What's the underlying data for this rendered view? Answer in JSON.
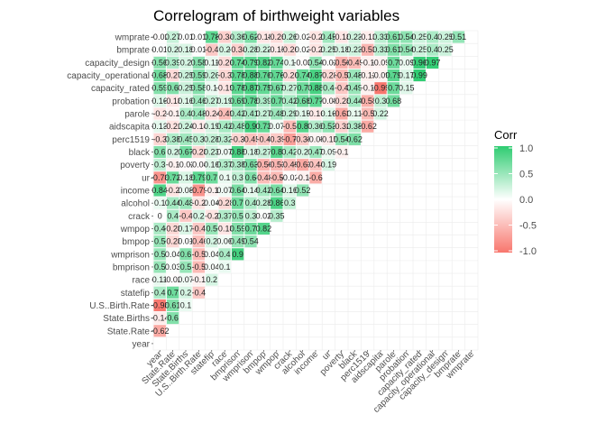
{
  "chart_data": {
    "type": "heatmap",
    "title": "Correlogram of birthweight variables",
    "variables": [
      "year",
      "State.Rate",
      "State.Births",
      "U.S..Birth.Rate",
      "statefip",
      "race",
      "bmprison",
      "wmprison",
      "bmpop",
      "wmpop",
      "crack",
      "alcohol",
      "income",
      "ur",
      "poverty",
      "black",
      "perc1519",
      "aidscapita",
      "parole",
      "probation",
      "capacity_rated",
      "capacity_operational",
      "capacity_design",
      "bmprate",
      "wmprate"
    ],
    "upper_triangle": {
      "State.Rate": [
        -0.62
      ],
      "State.Births": [
        -0.14,
        0.6
      ],
      "U.S..Birth.Rate": [
        -0.98,
        0.61,
        0.1
      ],
      "statefip": [
        0.4,
        0.7,
        0.2,
        -0.4
      ],
      "race": [
        0.11,
        -0.02,
        0.07,
        -0.1,
        0.2
      ],
      "bmprison": [
        0.5,
        0.03,
        0.5,
        -0.5,
        0.04,
        0.1
      ],
      "wmprison": [
        0.5,
        0.04,
        0.6,
        -0.5,
        0.04,
        0.4,
        0.9
      ],
      "bmpop": [
        0.5,
        -0.28,
        0.01,
        -0.46,
        0.2,
        0.06,
        0.49,
        0.54
      ],
      "wmpop": [
        0.4,
        -0.28,
        0.17,
        -0.4,
        0.5,
        -0.18,
        0.59,
        0.7,
        0.82
      ],
      "crack": [
        0.0,
        0.4,
        -0.4,
        0.2,
        -0.2,
        0.37,
        0.5,
        0.3,
        0.02,
        0.35
      ],
      "alcohol": [
        0.1,
        0.44,
        0.48,
        -0.2,
        0.04,
        -0.28,
        0.7,
        0.4,
        0.28,
        0.86,
        0.3
      ],
      "income": [
        0.84,
        -0.2,
        0.08,
        -0.79,
        -0.1,
        0.07,
        0.64,
        0.14,
        0.42,
        0.64,
        0.16,
        0.52
      ],
      "ur": [
        -0.78,
        0.72,
        0.18,
        0.79,
        0.7,
        0.1,
        0.3,
        0.6,
        -0.48,
        -0.5,
        -0.02,
        -0.1,
        -0.6
      ],
      "poverty": [
        0.3,
        -0.1,
        -0.02,
        -0.04,
        0.16,
        0.37,
        0.38,
        0.63,
        -0.56,
        -0.53,
        -0.49,
        -0.63,
        -0.44,
        0.19
      ],
      "black": [
        0.6,
        0.2,
        0.67,
        -0.28,
        0.23,
        0.07,
        0.88,
        0.18,
        0.27,
        0.8,
        0.42,
        0.2,
        0.47,
        0.09,
        -0.1
      ],
      "perc1519": [
        -0.3,
        0.38,
        0.45,
        0.3,
        0.28,
        0.32,
        -0.3,
        -0.45,
        -0.4,
        -0.39,
        -0.7,
        -0.38,
        -0.08,
        -0.15,
        0.54,
        0.62
      ],
      "aidscapita": [
        0.13,
        -0.21,
        0.24,
        -0.14,
        0.19,
        0.42,
        0.48,
        0.9,
        0.73,
        0.07,
        -0.5,
        0.8,
        0.36,
        0.53,
        -0.32,
        0.38,
        -0.62
      ],
      "parole": [
        -0.2,
        -0.1,
        0.4,
        0.48,
        -0.24,
        -0.49,
        0.42,
        0.41,
        0.27,
        0.48,
        0.29,
        0.15,
        -0.16,
        0.16,
        -0.63,
        0.11,
        -0.5,
        0.22
      ],
      "probation": [
        0.16,
        -0.18,
        0.16,
        0.46,
        0.27,
        0.19,
        0.69,
        0.78,
        0.39,
        0.7,
        0.42,
        0.68,
        0.77,
        -0.08,
        -0.28,
        0.44,
        -0.58,
        0.3,
        0.68
      ],
      "capacity_rated": [
        0.59,
        0.6,
        0.25,
        0.58,
        0.1,
        -0.19,
        0.78,
        0.87,
        0.75,
        0.67,
        0.27,
        0.7,
        0.88,
        0.4,
        -0.4,
        0.49,
        -0.1,
        -0.99,
        0.7,
        0.15
      ],
      "capacity_operational": [
        0.68,
        -0.27,
        0.25,
        0.59,
        0.26,
        -0.3,
        0.78,
        0.88,
        0.76,
        0.76,
        -0.26,
        0.74,
        0.87,
        -0.28,
        -0.5,
        0.48,
        -0.12,
        -0.09,
        0.79,
        0.17,
        0.99
      ],
      "capacity_design": [
        0.56,
        0.39,
        0.2,
        0.58,
        0.11,
        -0.26,
        0.74,
        0.79,
        0.82,
        0.74,
        0.1,
        -0.03,
        0.54,
        -0.02,
        -0.56,
        -0.49,
        -0.1,
        -0.09,
        0.7,
        0.09,
        0.96,
        0.97
      ],
      "bmprate": [
        0.01,
        0.2,
        0.18,
        0.01,
        -0.4,
        0.2,
        -0.34,
        0.28,
        0.22,
        -0.15,
        -0.26,
        0.02,
        -0.2,
        0.245,
        0.18,
        0.23,
        -0.53,
        0.33,
        0.61,
        0.54,
        0.25,
        0.4,
        0.25
      ],
      "wmprate": [
        -0.02,
        0.27,
        0.01,
        0.01,
        0.78,
        -0.34,
        0.36,
        0.62,
        -0.18,
        -0.26,
        0.26,
        0.02,
        -0.2,
        0.45,
        -0.18,
        0.23,
        -0.13,
        0.33,
        0.61,
        0.54,
        0.25,
        0.4,
        0.25,
        0.51
      ]
    },
    "legend": {
      "title": "Corr",
      "ticks": [
        "1.0",
        "0.5",
        "0.0",
        "-0.5",
        "-1.0"
      ],
      "range": [
        -1,
        1
      ],
      "colors": {
        "low": "#F8766D",
        "mid": "#FFFFFF",
        "high": "#2ECC71"
      },
      "placement": "right"
    },
    "grid": true
  }
}
